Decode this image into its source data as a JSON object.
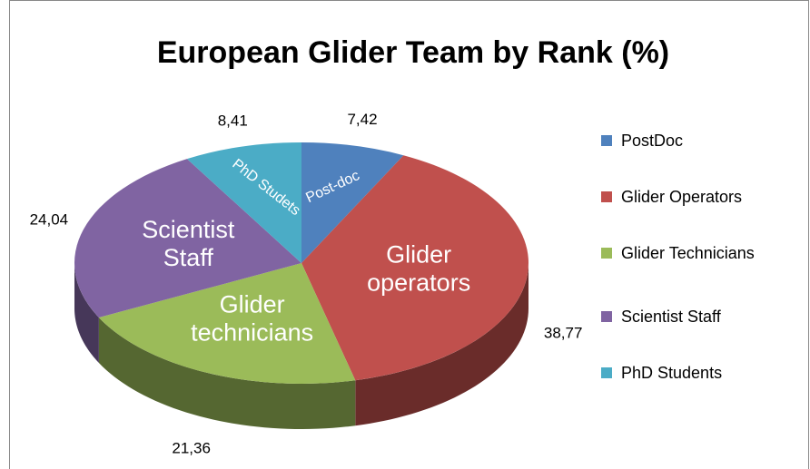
{
  "chart_data": {
    "type": "pie3d",
    "title": "European Glider Team by Rank (%)",
    "categories": [
      "PostDoc",
      "Glider Operators",
      "Glider Technicians",
      "Scientist Staff",
      "PhD Students"
    ],
    "values": [
      7.42,
      38.77,
      21.36,
      24.04,
      8.41
    ],
    "value_labels": [
      "7,42",
      "38,77",
      "21,36",
      "24,04",
      "8,41"
    ],
    "slice_labels": [
      [
        "Post-doc"
      ],
      [
        "Glider",
        "operators"
      ],
      [
        "Glider",
        "technicians"
      ],
      [
        "Scientist",
        "Staff"
      ],
      [
        "PhD Studets"
      ]
    ],
    "colors": [
      "#4f81bd",
      "#c0504d",
      "#9bbb59",
      "#8064a2",
      "#4bacc6"
    ],
    "legend": "right"
  }
}
